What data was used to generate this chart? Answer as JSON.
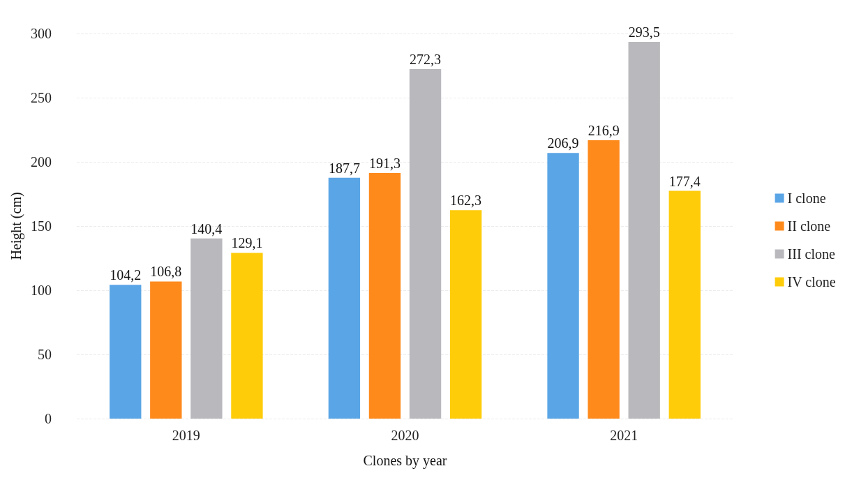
{
  "chart_data": {
    "type": "bar",
    "xlabel": "Clones by year",
    "ylabel": "Height (cm)",
    "categories": [
      "2019",
      "2020",
      "2021"
    ],
    "series": [
      {
        "name": "I clone",
        "color": "#5aa5e6",
        "values": [
          104.2,
          187.7,
          206.9
        ],
        "value_labels": [
          "104,2",
          "187,7",
          "206,9"
        ]
      },
      {
        "name": "II clone",
        "color": "#ff8a1c",
        "values": [
          106.8,
          191.3,
          216.9
        ],
        "value_labels": [
          "106,8",
          "191,3",
          "216,9"
        ]
      },
      {
        "name": "III clone",
        "color": "#b9b9bd",
        "values": [
          140.4,
          272.3,
          293.5
        ],
        "value_labels": [
          "140,4",
          "272,3",
          "293,5"
        ]
      },
      {
        "name": "IV clone",
        "color": "#ffcc0a",
        "values": [
          129.1,
          162.3,
          177.4
        ],
        "value_labels": [
          "129,1",
          "162,3",
          "177,4"
        ]
      }
    ],
    "ylim": [
      0,
      300
    ],
    "yticks": [
      0,
      50,
      100,
      150,
      200,
      250,
      300
    ],
    "grid": "y",
    "legend": "right"
  }
}
